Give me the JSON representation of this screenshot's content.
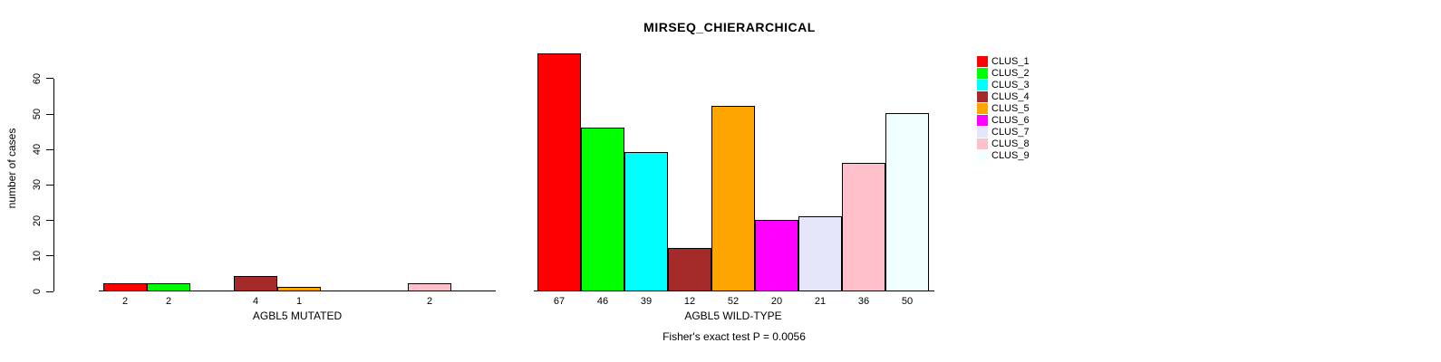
{
  "title": "MIRSEQ_CHIERARCHICAL",
  "footer": "Fisher's exact test P = 0.0056",
  "chart_data": {
    "type": "bar",
    "title": "MIRSEQ_CHIERARCHICAL",
    "ylabel": "number of cases",
    "xlabel_left": "AGBL5 MUTATED",
    "xlabel_right": "AGBL5 WILD-TYPE",
    "ylim": [
      0,
      60
    ],
    "yticks": [
      0,
      10,
      20,
      30,
      40,
      50,
      60
    ],
    "grid": false,
    "legend_position": "right",
    "categories": [
      "CLUS_1",
      "CLUS_2",
      "CLUS_3",
      "CLUS_4",
      "CLUS_5",
      "CLUS_6",
      "CLUS_7",
      "CLUS_8",
      "CLUS_9"
    ],
    "series_colors": [
      "#FF0000",
      "#00FF00",
      "#00FFFF",
      "#A52A2A",
      "#FFA500",
      "#FF00FF",
      "#E6E6FA",
      "#FFC0CB",
      "#F0FFFF"
    ],
    "groups": [
      {
        "label": "AGBL5 MUTATED",
        "values": [
          2,
          2,
          0,
          4,
          1,
          0,
          0,
          2,
          0
        ]
      },
      {
        "label": "AGBL5 WILD-TYPE",
        "values": [
          67,
          46,
          39,
          12,
          52,
          20,
          21,
          36,
          50
        ]
      }
    ],
    "annotation": "Fisher's exact test P = 0.0056",
    "legend": [
      {
        "label": "CLUS_1",
        "color": "#FF0000"
      },
      {
        "label": "CLUS_2",
        "color": "#00FF00"
      },
      {
        "label": "CLUS_3",
        "color": "#00FFFF"
      },
      {
        "label": "CLUS_4",
        "color": "#A52A2A"
      },
      {
        "label": "CLUS_5",
        "color": "#FFA500"
      },
      {
        "label": "CLUS_6",
        "color": "#FF00FF"
      },
      {
        "label": "CLUS_7",
        "color": "#E6E6FA"
      },
      {
        "label": "CLUS_8",
        "color": "#FFC0CB"
      },
      {
        "label": "CLUS_9",
        "color": "#F0FFFF"
      }
    ]
  }
}
